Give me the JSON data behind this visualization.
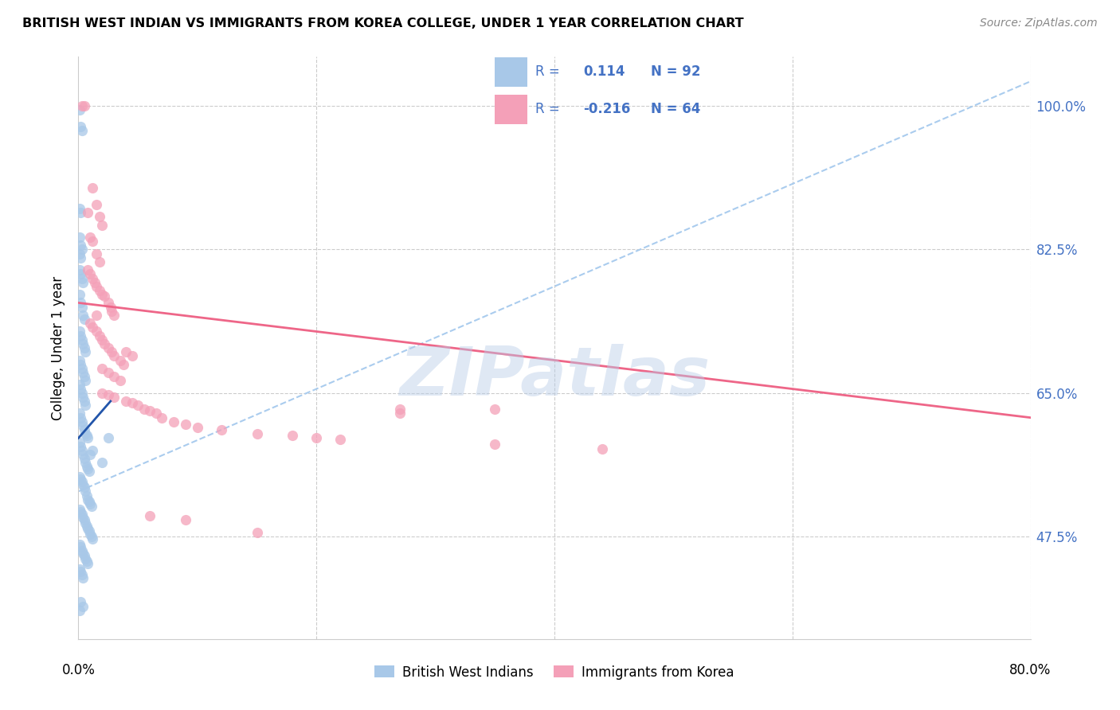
{
  "title": "BRITISH WEST INDIAN VS IMMIGRANTS FROM KOREA COLLEGE, UNDER 1 YEAR CORRELATION CHART",
  "source": "Source: ZipAtlas.com",
  "ylabel": "College, Under 1 year",
  "ytick_labels": [
    "100.0%",
    "82.5%",
    "65.0%",
    "47.5%"
  ],
  "ytick_values": [
    1.0,
    0.825,
    0.65,
    0.475
  ],
  "xmin": 0.0,
  "xmax": 0.8,
  "ymin": 0.35,
  "ymax": 1.06,
  "watermark": "ZIPatlas",
  "blue_color": "#a8c8e8",
  "pink_color": "#f4a0b8",
  "blue_line_color": "#2255aa",
  "pink_line_color": "#ee6688",
  "trendline_gray_color": "#aaccee",
  "blue_scatter": [
    [
      0.001,
      0.995
    ],
    [
      0.002,
      0.975
    ],
    [
      0.003,
      0.97
    ],
    [
      0.001,
      0.875
    ],
    [
      0.002,
      0.87
    ],
    [
      0.001,
      0.84
    ],
    [
      0.002,
      0.83
    ],
    [
      0.003,
      0.825
    ],
    [
      0.001,
      0.82
    ],
    [
      0.002,
      0.815
    ],
    [
      0.001,
      0.8
    ],
    [
      0.002,
      0.795
    ],
    [
      0.003,
      0.79
    ],
    [
      0.004,
      0.785
    ],
    [
      0.001,
      0.77
    ],
    [
      0.002,
      0.76
    ],
    [
      0.003,
      0.755
    ],
    [
      0.004,
      0.745
    ],
    [
      0.005,
      0.74
    ],
    [
      0.001,
      0.725
    ],
    [
      0.002,
      0.72
    ],
    [
      0.003,
      0.715
    ],
    [
      0.004,
      0.71
    ],
    [
      0.005,
      0.705
    ],
    [
      0.006,
      0.7
    ],
    [
      0.001,
      0.69
    ],
    [
      0.002,
      0.685
    ],
    [
      0.003,
      0.68
    ],
    [
      0.004,
      0.675
    ],
    [
      0.005,
      0.67
    ],
    [
      0.006,
      0.665
    ],
    [
      0.001,
      0.66
    ],
    [
      0.002,
      0.655
    ],
    [
      0.003,
      0.65
    ],
    [
      0.004,
      0.645
    ],
    [
      0.005,
      0.64
    ],
    [
      0.006,
      0.635
    ],
    [
      0.001,
      0.625
    ],
    [
      0.002,
      0.62
    ],
    [
      0.003,
      0.615
    ],
    [
      0.004,
      0.61
    ],
    [
      0.005,
      0.605
    ],
    [
      0.006,
      0.6
    ],
    [
      0.007,
      0.598
    ],
    [
      0.008,
      0.595
    ],
    [
      0.001,
      0.59
    ],
    [
      0.002,
      0.585
    ],
    [
      0.003,
      0.58
    ],
    [
      0.004,
      0.575
    ],
    [
      0.005,
      0.57
    ],
    [
      0.006,
      0.565
    ],
    [
      0.007,
      0.56
    ],
    [
      0.008,
      0.558
    ],
    [
      0.009,
      0.555
    ],
    [
      0.001,
      0.548
    ],
    [
      0.002,
      0.545
    ],
    [
      0.003,
      0.542
    ],
    [
      0.004,
      0.538
    ],
    [
      0.005,
      0.535
    ],
    [
      0.006,
      0.53
    ],
    [
      0.007,
      0.525
    ],
    [
      0.008,
      0.52
    ],
    [
      0.009,
      0.518
    ],
    [
      0.01,
      0.515
    ],
    [
      0.011,
      0.512
    ],
    [
      0.001,
      0.508
    ],
    [
      0.002,
      0.505
    ],
    [
      0.003,
      0.502
    ],
    [
      0.004,
      0.498
    ],
    [
      0.005,
      0.495
    ],
    [
      0.006,
      0.492
    ],
    [
      0.007,
      0.488
    ],
    [
      0.008,
      0.485
    ],
    [
      0.009,
      0.482
    ],
    [
      0.01,
      0.478
    ],
    [
      0.011,
      0.475
    ],
    [
      0.012,
      0.472
    ],
    [
      0.001,
      0.465
    ],
    [
      0.002,
      0.462
    ],
    [
      0.003,
      0.458
    ],
    [
      0.004,
      0.455
    ],
    [
      0.005,
      0.452
    ],
    [
      0.006,
      0.448
    ],
    [
      0.007,
      0.445
    ],
    [
      0.008,
      0.442
    ],
    [
      0.001,
      0.435
    ],
    [
      0.002,
      0.432
    ],
    [
      0.003,
      0.428
    ],
    [
      0.004,
      0.425
    ],
    [
      0.01,
      0.575
    ],
    [
      0.012,
      0.58
    ],
    [
      0.02,
      0.565
    ],
    [
      0.002,
      0.395
    ],
    [
      0.004,
      0.39
    ],
    [
      0.001,
      0.385
    ],
    [
      0.025,
      0.595
    ]
  ],
  "pink_scatter": [
    [
      0.003,
      1.0
    ],
    [
      0.005,
      1.0
    ],
    [
      0.012,
      0.9
    ],
    [
      0.015,
      0.88
    ],
    [
      0.018,
      0.865
    ],
    [
      0.02,
      0.855
    ],
    [
      0.008,
      0.87
    ],
    [
      0.01,
      0.84
    ],
    [
      0.012,
      0.835
    ],
    [
      0.015,
      0.82
    ],
    [
      0.018,
      0.81
    ],
    [
      0.008,
      0.8
    ],
    [
      0.01,
      0.795
    ],
    [
      0.012,
      0.79
    ],
    [
      0.014,
      0.785
    ],
    [
      0.015,
      0.78
    ],
    [
      0.018,
      0.775
    ],
    [
      0.02,
      0.77
    ],
    [
      0.022,
      0.768
    ],
    [
      0.025,
      0.76
    ],
    [
      0.027,
      0.755
    ],
    [
      0.028,
      0.75
    ],
    [
      0.03,
      0.745
    ],
    [
      0.01,
      0.735
    ],
    [
      0.012,
      0.73
    ],
    [
      0.015,
      0.725
    ],
    [
      0.018,
      0.72
    ],
    [
      0.02,
      0.715
    ],
    [
      0.022,
      0.71
    ],
    [
      0.025,
      0.705
    ],
    [
      0.028,
      0.7
    ],
    [
      0.03,
      0.695
    ],
    [
      0.035,
      0.69
    ],
    [
      0.038,
      0.685
    ],
    [
      0.015,
      0.745
    ],
    [
      0.04,
      0.7
    ],
    [
      0.045,
      0.695
    ],
    [
      0.02,
      0.68
    ],
    [
      0.025,
      0.675
    ],
    [
      0.03,
      0.67
    ],
    [
      0.035,
      0.665
    ],
    [
      0.02,
      0.65
    ],
    [
      0.025,
      0.648
    ],
    [
      0.03,
      0.645
    ],
    [
      0.04,
      0.64
    ],
    [
      0.045,
      0.638
    ],
    [
      0.05,
      0.635
    ],
    [
      0.055,
      0.63
    ],
    [
      0.06,
      0.628
    ],
    [
      0.065,
      0.625
    ],
    [
      0.07,
      0.62
    ],
    [
      0.08,
      0.615
    ],
    [
      0.09,
      0.612
    ],
    [
      0.1,
      0.608
    ],
    [
      0.12,
      0.605
    ],
    [
      0.15,
      0.6
    ],
    [
      0.18,
      0.598
    ],
    [
      0.2,
      0.595
    ],
    [
      0.22,
      0.593
    ],
    [
      0.35,
      0.588
    ],
    [
      0.44,
      0.582
    ],
    [
      0.35,
      0.63
    ],
    [
      0.27,
      0.625
    ],
    [
      0.15,
      0.48
    ],
    [
      0.06,
      0.5
    ],
    [
      0.09,
      0.495
    ],
    [
      0.27,
      0.63
    ]
  ],
  "blue_trendline_x": [
    0.0,
    0.027
  ],
  "blue_trendline_y": [
    0.595,
    0.64
  ],
  "pink_trendline_x": [
    0.0,
    0.8
  ],
  "pink_trendline_y": [
    0.76,
    0.62
  ],
  "gray_trendline_x": [
    0.0,
    0.8
  ],
  "gray_trendline_y": [
    0.53,
    1.03
  ]
}
